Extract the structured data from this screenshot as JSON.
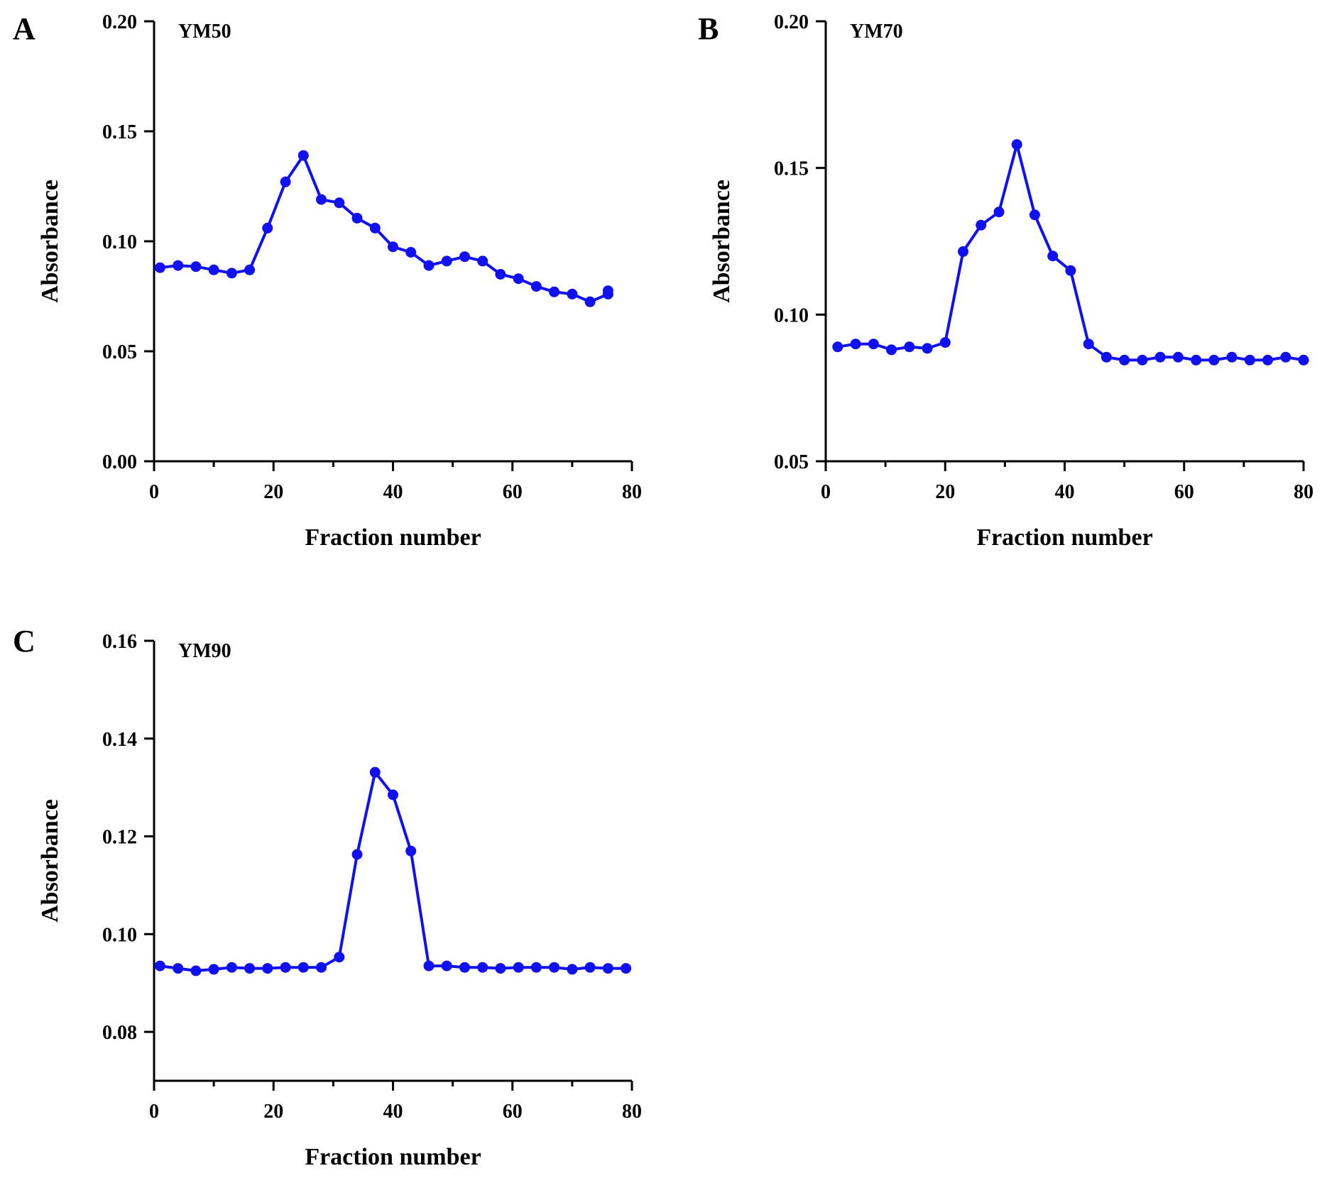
{
  "series_color": "#1010f0",
  "chart_data": [
    {
      "type": "line",
      "panel_label": "A",
      "series_name": "YM50",
      "xlabel": "Fraction number",
      "ylabel": "Absorbance",
      "xlim": [
        0,
        80
      ],
      "ylim": [
        0,
        0.2
      ],
      "x_ticks": [
        0,
        20,
        40,
        60,
        80
      ],
      "x_tick_labels": [
        "0",
        "20",
        "40",
        "60",
        "80"
      ],
      "y_ticks": [
        0,
        0.05,
        0.1,
        0.15,
        0.2
      ],
      "y_tick_labels": [
        "0.00",
        "0.05",
        "0.10",
        "0.15",
        "0.20"
      ],
      "x": [
        1,
        4,
        7,
        10,
        13,
        16,
        19,
        22,
        25,
        28,
        31,
        34,
        37,
        40,
        43,
        46,
        49,
        52,
        55,
        58,
        61,
        64,
        67,
        70,
        73,
        76,
        76
      ],
      "y": [
        0.088,
        0.089,
        0.0885,
        0.087,
        0.0855,
        0.087,
        0.106,
        0.127,
        0.139,
        0.119,
        0.1175,
        0.1105,
        0.106,
        0.0975,
        0.095,
        0.089,
        0.091,
        0.093,
        0.091,
        0.085,
        0.083,
        0.0795,
        0.077,
        0.076,
        0.0725,
        0.076,
        0.0775
      ]
    },
    {
      "type": "line",
      "panel_label": "B",
      "series_name": "YM70",
      "xlabel": "Fraction number",
      "ylabel": "Absorbance",
      "xlim": [
        0,
        80
      ],
      "ylim": [
        0.05,
        0.2
      ],
      "x_ticks": [
        0,
        20,
        40,
        60,
        80
      ],
      "x_tick_labels": [
        "0",
        "20",
        "40",
        "60",
        "80"
      ],
      "y_ticks": [
        0.05,
        0.1,
        0.15,
        0.2
      ],
      "y_tick_labels": [
        "0.05",
        "0.10",
        "0.15",
        "0.20"
      ],
      "x": [
        2,
        5,
        8,
        11,
        14,
        17,
        20,
        23,
        26,
        29,
        32,
        35,
        38,
        41,
        44,
        47,
        50,
        53,
        56,
        59,
        62,
        65,
        68,
        71,
        74,
        77,
        80
      ],
      "y": [
        0.089,
        0.09,
        0.09,
        0.088,
        0.089,
        0.0885,
        0.0905,
        0.1215,
        0.1305,
        0.135,
        0.158,
        0.134,
        0.12,
        0.115,
        0.09,
        0.0855,
        0.0845,
        0.0845,
        0.0855,
        0.0855,
        0.0845,
        0.0845,
        0.0855,
        0.0845,
        0.0845,
        0.0855,
        0.0845
      ]
    },
    {
      "type": "line",
      "panel_label": "C",
      "series_name": "YM90",
      "xlabel": "Fraction number",
      "ylabel": "Absorbance",
      "xlim": [
        0,
        80
      ],
      "ylim": [
        0.07,
        0.16
      ],
      "x_ticks": [
        0,
        20,
        40,
        60,
        80
      ],
      "x_tick_labels": [
        "0",
        "20",
        "40",
        "60",
        "80"
      ],
      "y_ticks": [
        0.08,
        0.1,
        0.12,
        0.14,
        0.16
      ],
      "y_tick_labels": [
        "0.08",
        "0.10",
        "0.12",
        "0.14",
        "0.16"
      ],
      "x": [
        1,
        4,
        7,
        10,
        13,
        16,
        19,
        22,
        25,
        28,
        31,
        34,
        37,
        40,
        43,
        46,
        49,
        52,
        55,
        58,
        61,
        64,
        67,
        70,
        73,
        76,
        79
      ],
      "y": [
        0.0935,
        0.093,
        0.0925,
        0.0928,
        0.0932,
        0.093,
        0.093,
        0.0932,
        0.0932,
        0.0932,
        0.0953,
        0.1163,
        0.1331,
        0.1285,
        0.117,
        0.0935,
        0.0935,
        0.0932,
        0.0932,
        0.093,
        0.0932,
        0.0932,
        0.0932,
        0.0928,
        0.0932,
        0.093,
        0.093
      ]
    }
  ]
}
